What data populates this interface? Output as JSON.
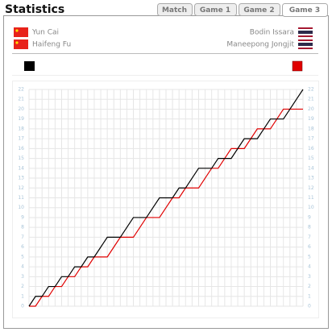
{
  "header": {
    "title": "Statistics",
    "tabs": [
      "Match",
      "Game 1",
      "Game 2",
      "Game 3"
    ],
    "active_tab": 3
  },
  "players": {
    "left": [
      "Yun Cai",
      "Haifeng Fu"
    ],
    "right": [
      "Bodin Issara",
      "Maneepong Jongjit"
    ]
  },
  "chart_data": {
    "type": "line",
    "grid": true,
    "ylim": [
      0,
      22
    ],
    "yticks": [
      0,
      1,
      2,
      3,
      4,
      5,
      6,
      7,
      8,
      9,
      10,
      11,
      12,
      13,
      14,
      15,
      16,
      17,
      18,
      19,
      20,
      21,
      22
    ],
    "series": [
      {
        "color": "#000000",
        "values": [
          0,
          1,
          1,
          2,
          2,
          3,
          3,
          4,
          4,
          5,
          5,
          6,
          7,
          7,
          7,
          8,
          9,
          9,
          9,
          10,
          11,
          11,
          11,
          12,
          12,
          13,
          14,
          14,
          14,
          15,
          15,
          15,
          16,
          17,
          17,
          17,
          18,
          19,
          19,
          19,
          20,
          21,
          22
        ]
      },
      {
        "color": "#e00000",
        "values": [
          0,
          0,
          1,
          1,
          2,
          2,
          3,
          3,
          4,
          4,
          5,
          5,
          5,
          6,
          7,
          7,
          7,
          8,
          9,
          9,
          9,
          10,
          11,
          11,
          12,
          12,
          12,
          13,
          14,
          14,
          15,
          16,
          16,
          16,
          17,
          18,
          18,
          18,
          19,
          20,
          20,
          20,
          20
        ]
      }
    ]
  }
}
